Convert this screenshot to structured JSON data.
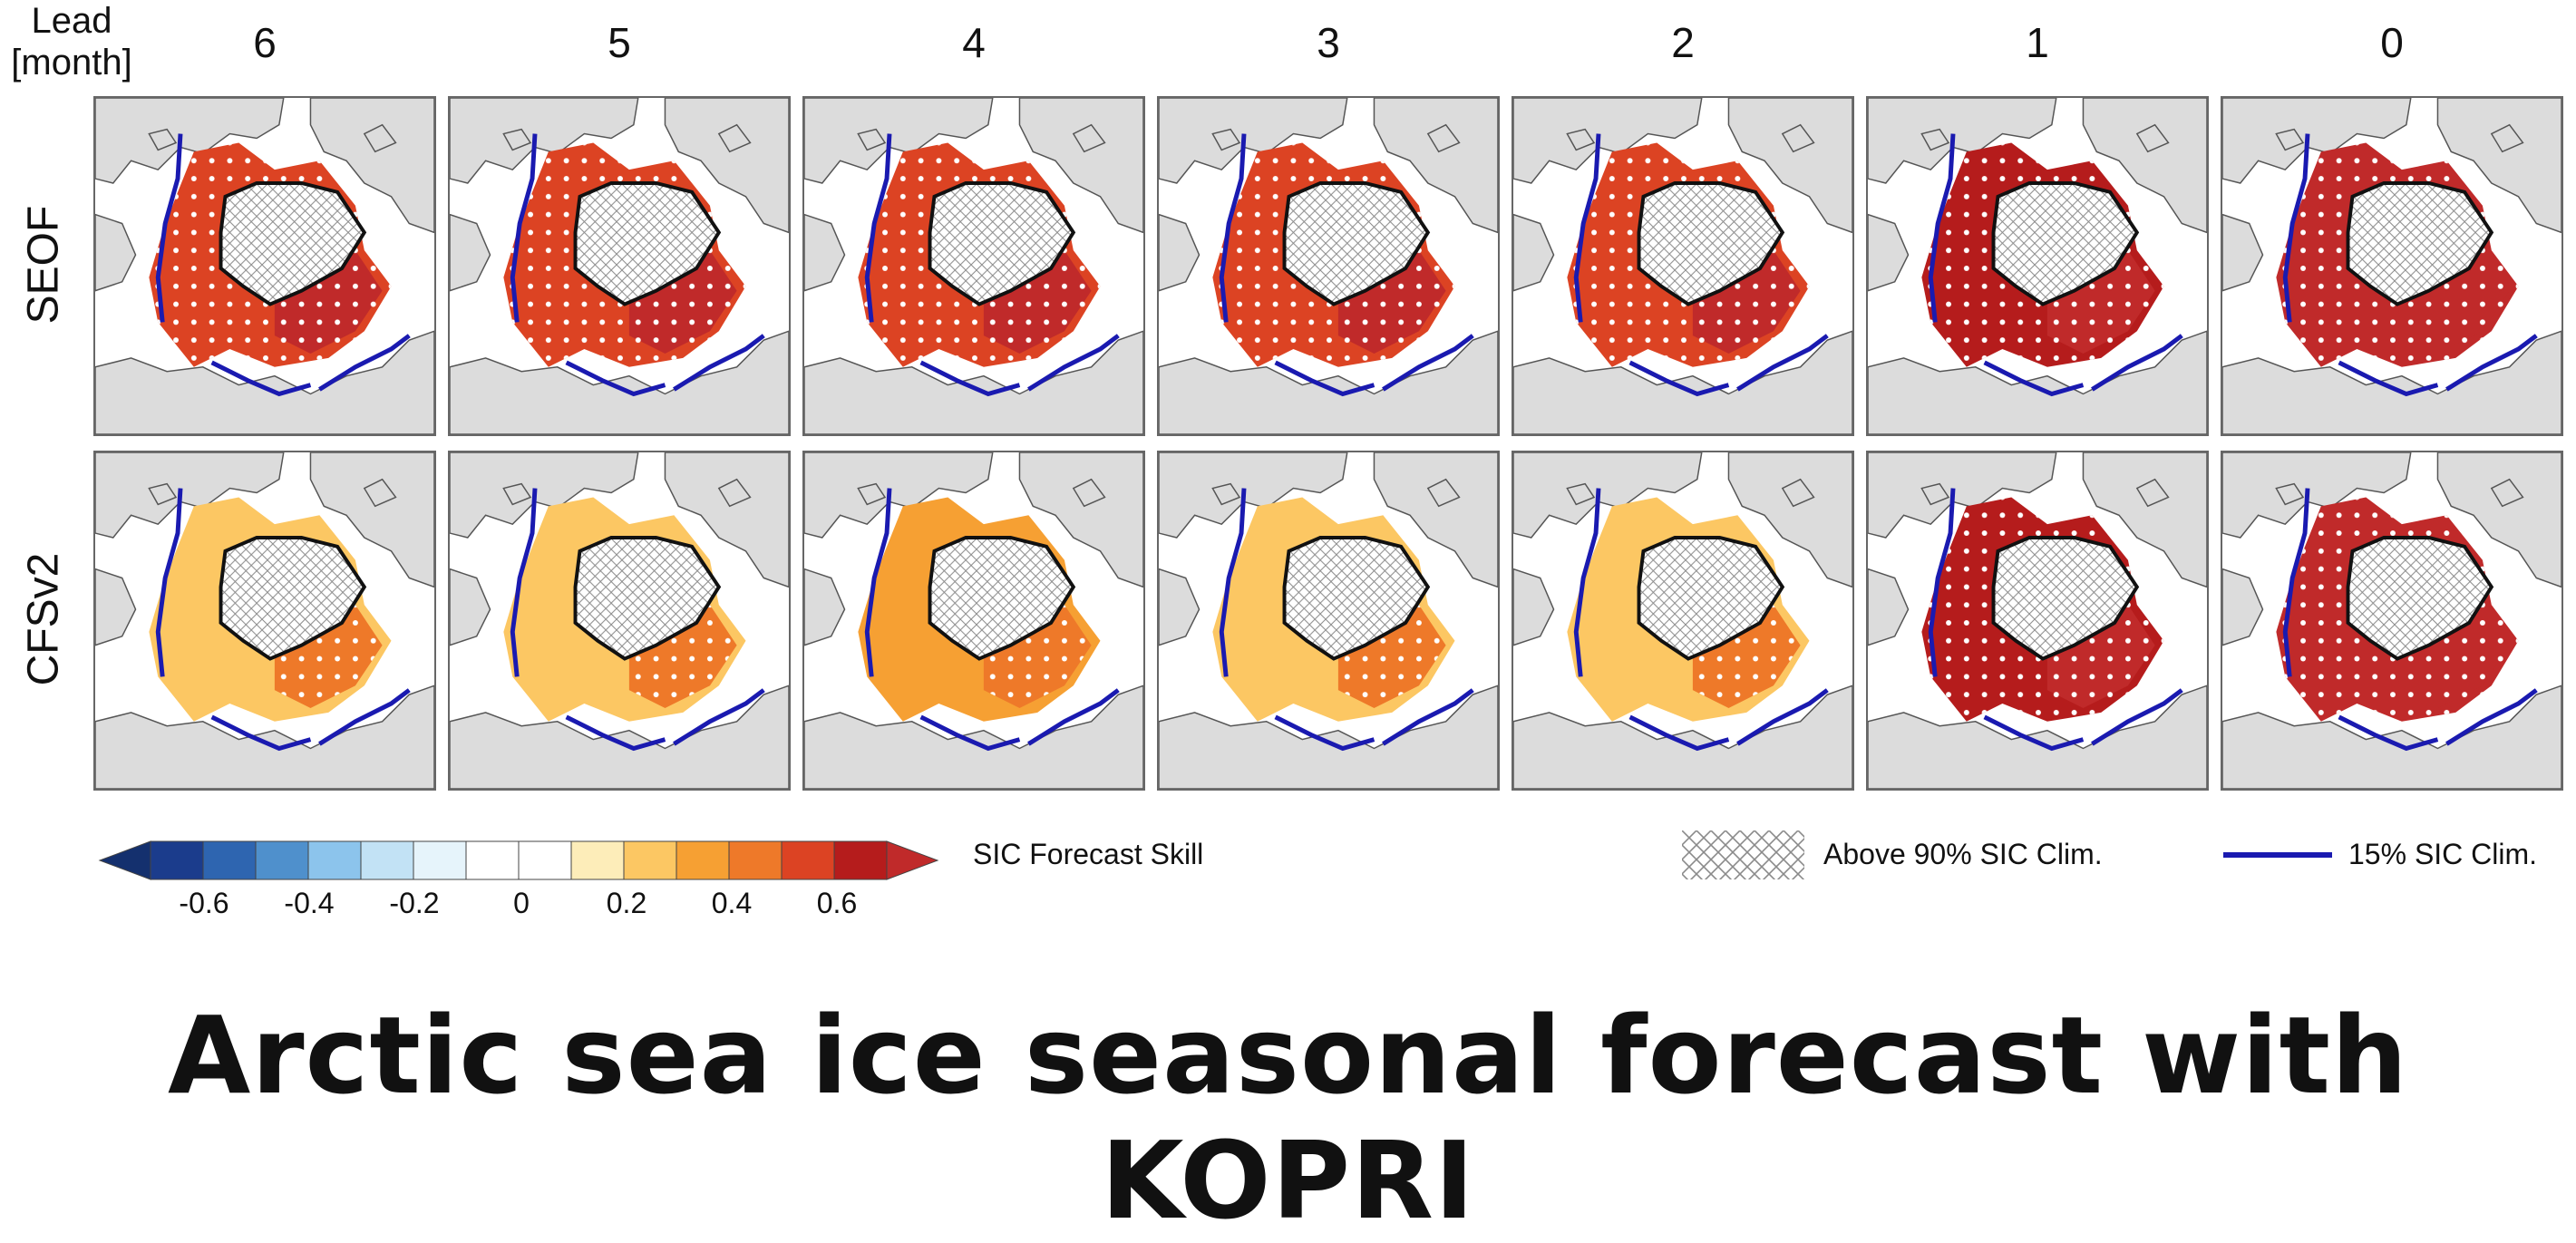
{
  "lead_axis": {
    "label_line1": "Lead",
    "label_line2": "[month]",
    "leads": [
      "6",
      "5",
      "4",
      "3",
      "2",
      "1",
      "0"
    ]
  },
  "rows": [
    {
      "name": "SEOF",
      "skill": [
        0.55,
        0.55,
        0.55,
        0.55,
        0.58,
        0.62,
        0.8
      ]
    },
    {
      "name": "CFSv2",
      "skill": [
        0.25,
        0.22,
        0.3,
        0.25,
        0.22,
        0.62,
        0.8
      ]
    }
  ],
  "colorbar": {
    "label": "SIC Forecast Skill",
    "ticks": [
      "-0.6",
      "-0.4",
      "-0.2",
      "0",
      "0.2",
      "0.4",
      "0.6"
    ],
    "colors": [
      "#1b3c8c",
      "#2e65b0",
      "#4f90cc",
      "#8cc4ec",
      "#c2e2f5",
      "#e6f4fb",
      "#ffffff",
      "#ffffff",
      "#fdedb9",
      "#fcc763",
      "#f6a033",
      "#ee7929",
      "#dc4323",
      "#b51c1c"
    ],
    "low_color": "#14306e",
    "high_color": "#c02a2a"
  },
  "legend": {
    "hatch_label": "Above 90% SIC Clim.",
    "line_label": "15% SIC Clim.",
    "line_color": "#1a1ab0"
  },
  "colors": {
    "land": "#dcdcdc",
    "coast": "#555555",
    "ice_edge": "#1a1ab0",
    "boundary": "#111111"
  },
  "title": "Arctic sea ice seasonal forecast with KOPRI"
}
